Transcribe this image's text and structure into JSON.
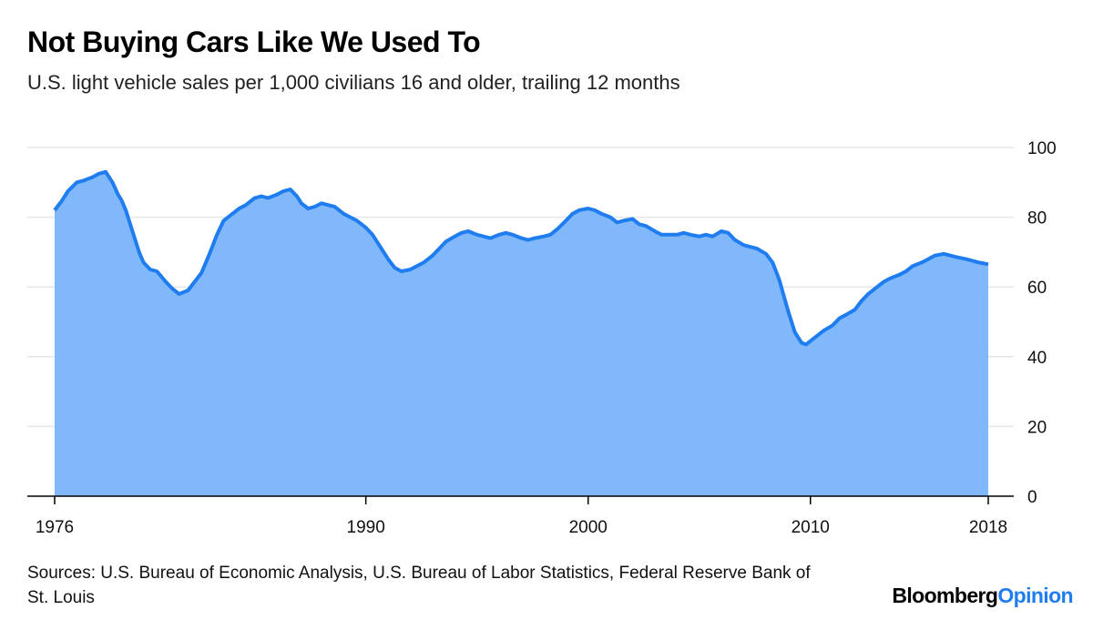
{
  "title": "Not Buying Cars Like We Used To",
  "subtitle": "U.S. light vehicle sales per 1,000 civilians 16 and older, trailing 12 months",
  "source": "Sources: U.S. Bureau of Economic Analysis, U.S. Bureau of Labor Statistics, Federal Reserve Bank of St. Louis",
  "brand": {
    "primary": "Bloomberg",
    "secondary": "Opinion"
  },
  "colors": {
    "line": "#1f7df0",
    "fill": "#80b8fa",
    "grid": "#e6e6e6",
    "axis": "#000000",
    "brand_accent": "#1f7df0"
  },
  "chart_data": {
    "type": "area",
    "title": "Not Buying Cars Like We Used To",
    "subtitle": "U.S. light vehicle sales per 1,000 civilians 16 and older, trailing 12 months",
    "xlabel": "",
    "ylabel": "",
    "xlim": [
      1976,
      2018
    ],
    "ylim": [
      0,
      100
    ],
    "x_ticks": [
      1976,
      1990,
      2000,
      2010,
      2018
    ],
    "y_ticks": [
      0,
      20,
      40,
      60,
      80,
      100
    ],
    "y_axis_side": "right",
    "grid": "horizontal",
    "legend": "none",
    "series": [
      {
        "x": [
          1976.0,
          1976.3,
          1976.6,
          1977.0,
          1977.3,
          1977.7,
          1978.0,
          1978.3,
          1978.6,
          1978.85,
          1979.0,
          1979.2,
          1979.5,
          1979.8,
          1980.0,
          1980.3,
          1980.6,
          1981.0,
          1981.3,
          1981.6,
          1982.0,
          1982.3,
          1982.6,
          1982.8,
          1983.0,
          1983.3,
          1983.6,
          1984.0,
          1984.3,
          1984.6,
          1985.0,
          1985.3,
          1985.6,
          1986.0,
          1986.3,
          1986.6,
          1986.9,
          1987.1,
          1987.4,
          1987.7,
          1988.0,
          1988.3,
          1988.6,
          1989.0,
          1989.3,
          1989.6,
          1990.0,
          1990.3,
          1990.6,
          1991.0,
          1991.3,
          1991.6,
          1992.0,
          1992.3,
          1992.6,
          1993.0,
          1993.3,
          1993.6,
          1994.0,
          1994.3,
          1994.6,
          1995.0,
          1995.3,
          1995.6,
          1996.0,
          1996.3,
          1996.6,
          1997.0,
          1997.3,
          1997.6,
          1998.0,
          1998.3,
          1998.6,
          1999.0,
          1999.3,
          1999.6,
          2000.0,
          2000.3,
          2000.6,
          2001.0,
          2001.3,
          2001.6,
          2002.0,
          2002.3,
          2002.6,
          2003.0,
          2003.3,
          2003.6,
          2004.0,
          2004.3,
          2004.6,
          2005.0,
          2005.3,
          2005.6,
          2006.0,
          2006.3,
          2006.6,
          2007.0,
          2007.3,
          2007.6,
          2008.0,
          2008.3,
          2008.6,
          2009.0,
          2009.3,
          2009.6,
          2009.8,
          2010.0,
          2010.3,
          2010.6,
          2011.0,
          2011.3,
          2011.6,
          2012.0,
          2012.3,
          2012.6,
          2013.0,
          2013.3,
          2013.6,
          2014.0,
          2014.3,
          2014.6,
          2015.0,
          2015.3,
          2015.6,
          2016.0,
          2016.3,
          2016.6,
          2017.0,
          2017.3,
          2017.6,
          2018.0
        ],
        "values": [
          82.0,
          84.5,
          87.5,
          90.0,
          90.5,
          91.5,
          92.5,
          93.0,
          90.0,
          86.5,
          85.0,
          82.0,
          76.0,
          70.0,
          67.0,
          65.0,
          64.5,
          61.5,
          59.5,
          58.0,
          59.0,
          61.5,
          64.0,
          67.0,
          70.0,
          75.0,
          79.0,
          81.0,
          82.5,
          83.5,
          85.5,
          86.0,
          85.5,
          86.5,
          87.5,
          88.0,
          86.0,
          84.0,
          82.5,
          83.0,
          84.0,
          83.5,
          83.0,
          81.0,
          80.0,
          79.0,
          77.0,
          75.0,
          72.0,
          68.0,
          65.5,
          64.5,
          65.0,
          66.0,
          67.0,
          69.0,
          71.0,
          73.0,
          74.5,
          75.5,
          76.0,
          75.0,
          74.5,
          74.0,
          75.0,
          75.5,
          75.0,
          74.0,
          73.5,
          74.0,
          74.5,
          75.0,
          76.5,
          79.0,
          81.0,
          82.0,
          82.5,
          82.0,
          81.0,
          80.0,
          78.5,
          79.0,
          79.5,
          78.0,
          77.5,
          76.0,
          75.0,
          75.0,
          75.0,
          75.5,
          75.0,
          74.5,
          75.0,
          74.5,
          76.0,
          75.5,
          73.5,
          72.0,
          71.5,
          71.0,
          69.5,
          67.0,
          62.0,
          53.0,
          47.0,
          44.0,
          43.5,
          44.5,
          46.0,
          47.5,
          49.0,
          51.0,
          52.0,
          53.5,
          56.0,
          58.0,
          60.0,
          61.5,
          62.5,
          63.5,
          64.5,
          66.0,
          67.0,
          68.0,
          69.0,
          69.5,
          69.0,
          68.5,
          68.0,
          67.5,
          67.0,
          66.5
        ]
      }
    ]
  }
}
